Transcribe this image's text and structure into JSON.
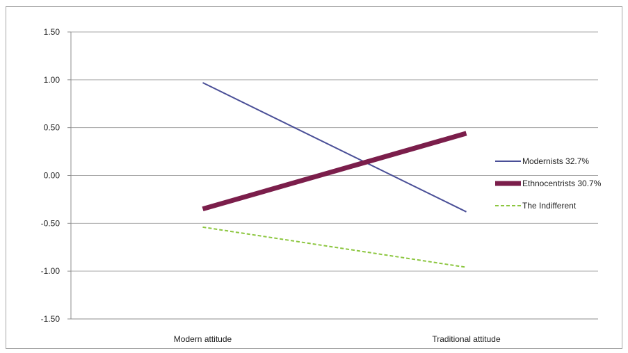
{
  "chart_data": {
    "type": "line",
    "categories": [
      "Modern attitude",
      "Traditional attitude"
    ],
    "series": [
      {
        "name": "Modernists 32.7%",
        "values": [
          0.97,
          -0.38
        ],
        "color": "#4a4f97",
        "style": "solid",
        "weight": "thin"
      },
      {
        "name": "Ethnocentrists 30.7%",
        "values": [
          -0.35,
          0.44
        ],
        "color": "#7b1e4b",
        "style": "solid",
        "weight": "thick"
      },
      {
        "name": "The Indifferent",
        "values": [
          -0.54,
          -0.96
        ],
        "color": "#8cc63f",
        "style": "dashed",
        "weight": "thin"
      }
    ],
    "y_ticks": [
      "1.50",
      "1.00",
      "0.50",
      "0.00",
      "-0.50",
      "-1.00",
      "-1.50"
    ],
    "ylim": [
      -1.5,
      1.5
    ],
    "grid": true,
    "legend_position": "right"
  }
}
